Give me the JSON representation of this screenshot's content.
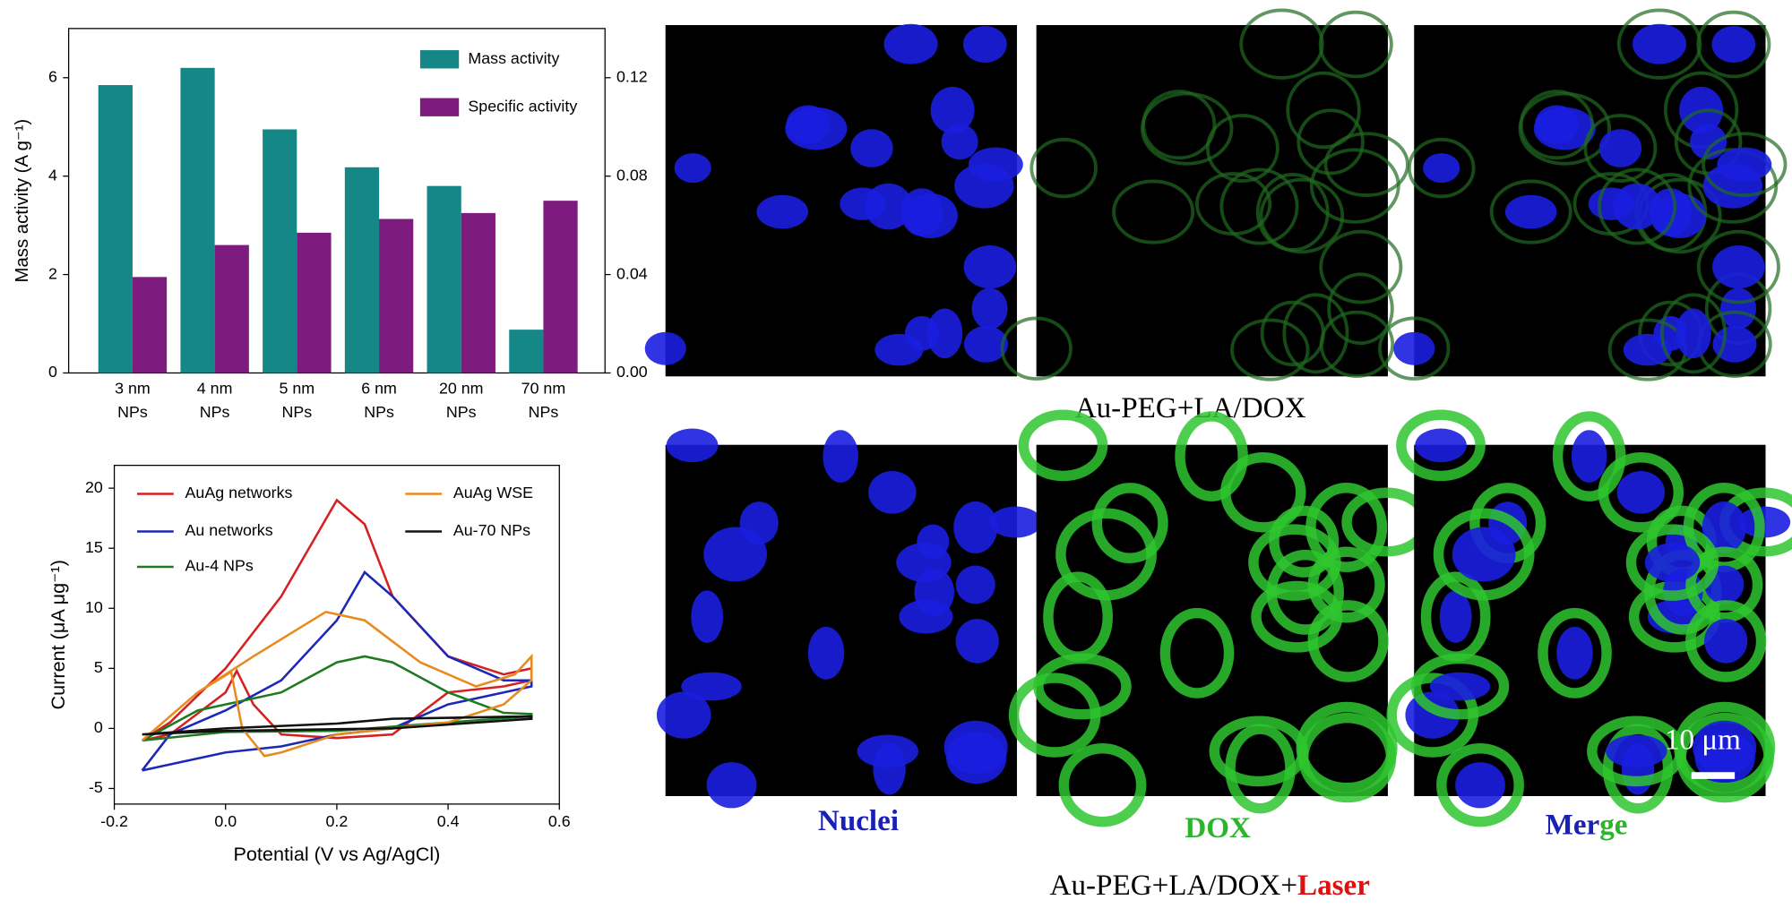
{
  "chart_data": [
    {
      "type": "bar",
      "ylabel": "Mass activity (A g⁻¹)",
      "categories": [
        "3 nm\nNPs",
        "4 nm\nNPs",
        "5 nm\nNPs",
        "6 nm\nNPs",
        "20 nm\nNPs",
        "70 nm\nNPs"
      ],
      "series": [
        {
          "name": "Mass activity",
          "color": "#168787",
          "values": [
            5.85,
            6.2,
            4.95,
            4.18,
            3.8,
            0.88
          ]
        },
        {
          "name": "Specific activity",
          "color": "#7d1b7e",
          "axis": "y2",
          "values": [
            0.039,
            0.052,
            0.057,
            0.0626,
            0.065,
            0.07
          ]
        }
      ],
      "ylim": [
        0,
        7
      ],
      "yticks": [
        0,
        2,
        4,
        6
      ],
      "y2lim": [
        0,
        0.14
      ],
      "y2ticks": [
        {
          "value": 0,
          "label": "0.00"
        },
        {
          "value": 0.04,
          "label": "0.04"
        },
        {
          "value": 0.08,
          "label": "0.08"
        },
        {
          "value": 0.12,
          "label": "0.12"
        }
      ],
      "legend": "upper right"
    },
    {
      "type": "line",
      "xlabel": "Potential (V vs Ag/AgCl)",
      "ylabel": "Current (μA μg⁻¹)",
      "xlim": [
        -0.2,
        0.6
      ],
      "xticks": [
        {
          "value": -0.2,
          "label": "-0.2"
        },
        {
          "value": 0,
          "label": "0.0"
        },
        {
          "value": 0.2,
          "label": "0.2"
        },
        {
          "value": 0.4,
          "label": "0.4"
        },
        {
          "value": 0.6,
          "label": "0.6"
        }
      ],
      "ylim": [
        -6.3,
        21.9
      ],
      "yticks": [
        -5,
        0,
        5,
        10,
        15,
        20
      ],
      "series": [
        {
          "name": "AuAg networks",
          "color": "#d62020",
          "x": [
            -0.15,
            -0.1,
            0,
            0.1,
            0.2,
            0.25,
            0.3,
            0.4,
            0.5,
            0.55,
            0.55,
            0.5,
            0.4,
            0.3,
            0.2,
            0.1,
            0.05,
            0.02,
            0,
            -0.1,
            -0.15
          ],
          "values": [
            -1,
            0.5,
            5,
            11,
            19,
            17,
            11,
            6,
            4.5,
            5,
            4,
            3.5,
            3,
            -0.5,
            -0.8,
            -0.5,
            2,
            4.8,
            3,
            -0.5,
            -1
          ]
        },
        {
          "name": "Au networks",
          "color": "#1d27b8",
          "x": [
            -0.15,
            -0.1,
            0,
            0.1,
            0.2,
            0.25,
            0.3,
            0.4,
            0.5,
            0.55,
            0.55,
            0.5,
            0.4,
            0.3,
            0.2,
            0.1,
            0,
            -0.1,
            -0.15
          ],
          "values": [
            -3.5,
            -0.5,
            1.5,
            4,
            9,
            13,
            11,
            6,
            4,
            4,
            3.5,
            3,
            2,
            0,
            -0.5,
            -1.5,
            -2,
            -3,
            -3.5
          ]
        },
        {
          "name": "Au-4 NPs",
          "color": "#1f7a1f",
          "x": [
            -0.15,
            -0.05,
            0.1,
            0.2,
            0.25,
            0.3,
            0.4,
            0.5,
            0.55,
            0.55,
            0.4,
            0.2,
            0,
            -0.15
          ],
          "values": [
            -1,
            1.5,
            3,
            5.5,
            6,
            5.5,
            3,
            1.3,
            1.2,
            1,
            0.5,
            -0.2,
            -0.3,
            -1
          ]
        },
        {
          "name": "AuAg WSE",
          "color": "#e88a1e",
          "x": [
            -0.15,
            -0.05,
            0.05,
            0.18,
            0.25,
            0.35,
            0.45,
            0.52,
            0.55,
            0.55,
            0.5,
            0.4,
            0.2,
            0.1,
            0.07,
            0.03,
            0.01,
            -0.05,
            -0.1,
            -0.15
          ],
          "values": [
            -1,
            3,
            6,
            9.7,
            9,
            5.5,
            3.5,
            4.5,
            6,
            4,
            2,
            0.5,
            -0.5,
            -2,
            -2.3,
            0,
            4.7,
            3,
            1,
            -1
          ]
        },
        {
          "name": "Au-70 NPs",
          "color": "#111111",
          "x": [
            -0.15,
            0,
            0.2,
            0.3,
            0.55,
            0.55,
            0.3,
            0,
            -0.15
          ],
          "values": [
            -0.5,
            0,
            0.4,
            0.8,
            1,
            0.8,
            0,
            -0.2,
            -0.5
          ]
        }
      ]
    }
  ],
  "micrographs": {
    "row1_caption": "Au-PEG+LA/DOX",
    "row2_caption": [
      "Au-PEG+LA/DOX+",
      "Laser"
    ],
    "columns": [
      "Nuclei",
      "DOX",
      [
        "Mer",
        "ge"
      ]
    ],
    "scale_bar": "10 μm"
  }
}
